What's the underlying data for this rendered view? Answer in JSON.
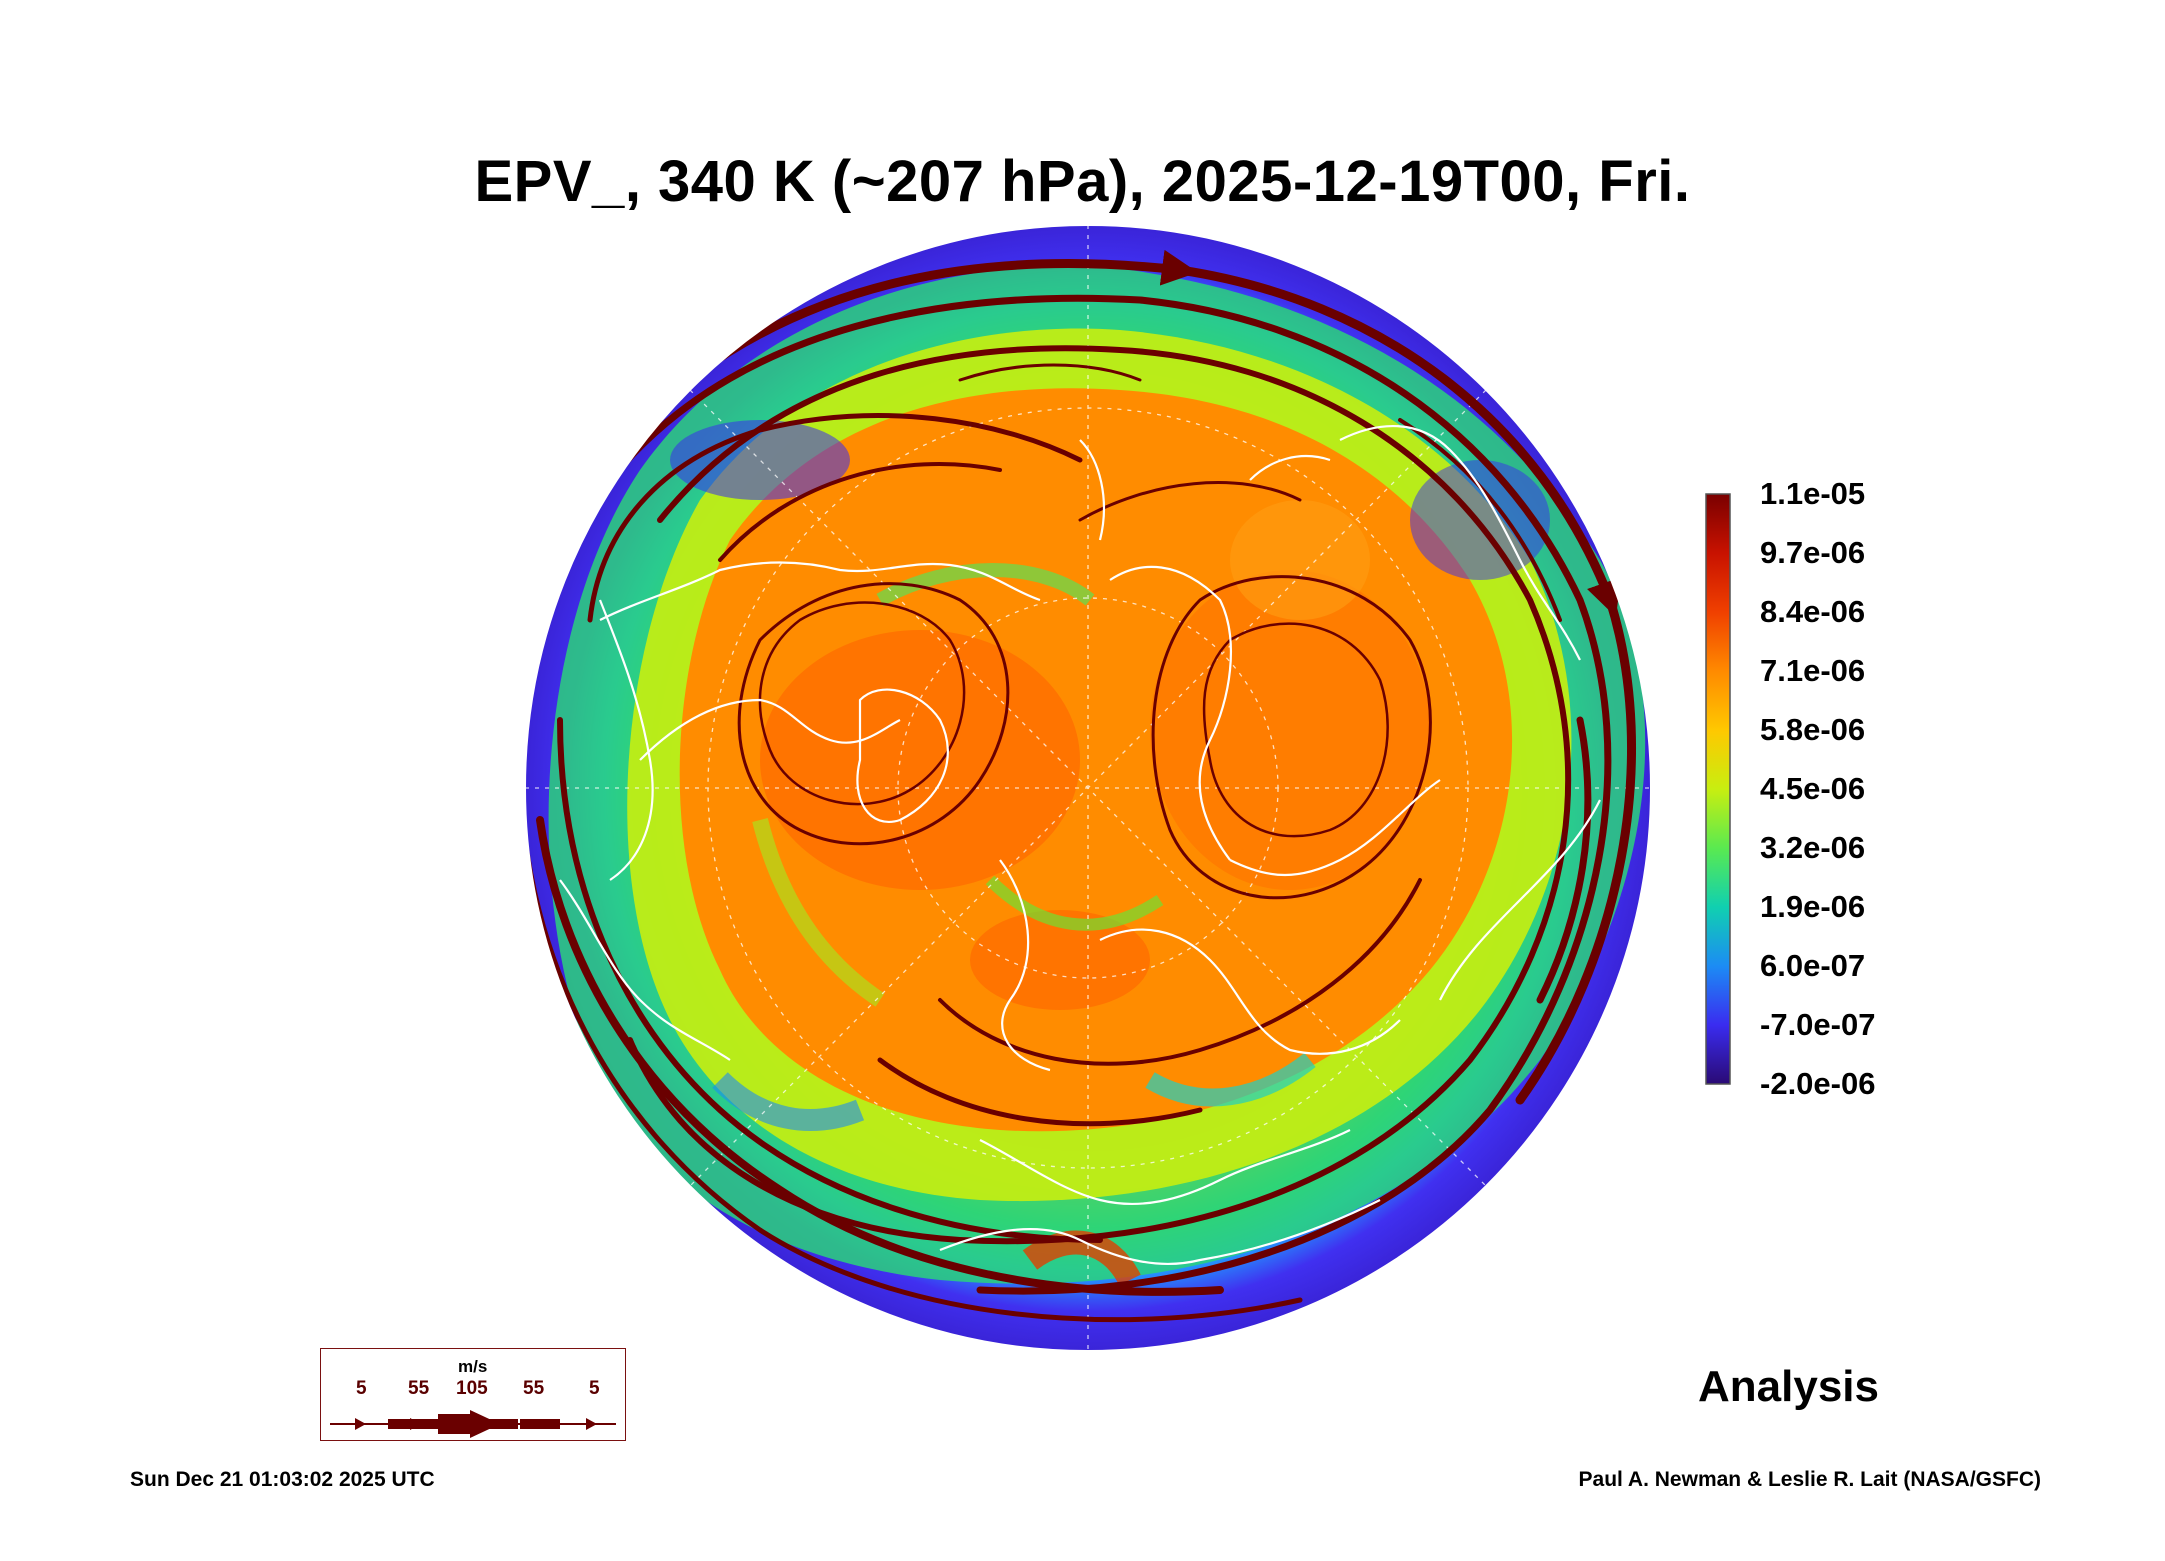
{
  "title": "EPV_, 340 K (~207 hPa), 2025-12-19T00, Fri.",
  "colorbar": {
    "labels": [
      "1.1e-05",
      "9.7e-06",
      "8.4e-06",
      "7.1e-06",
      "5.8e-06",
      "4.5e-06",
      "3.2e-06",
      "1.9e-06",
      "6.0e-07",
      "-7.0e-07",
      "-2.0e-06"
    ],
    "colors": [
      "#7a0000",
      "#c81200",
      "#f04000",
      "#ff8a00",
      "#ffc800",
      "#c8ee10",
      "#5aea50",
      "#10d0b0",
      "#1c8cf4",
      "#3a2cf0",
      "#3a0a74"
    ]
  },
  "wind_legend": {
    "unit": "m/s",
    "values": [
      "5",
      "55",
      "105",
      "55",
      "5"
    ],
    "color": "#6a0000"
  },
  "analysis_label": "Analysis",
  "timestamp": "Sun Dec 21 01:03:02 2025 UTC",
  "credit": "Paul A. Newman & Leslie R. Lait (NASA/GSFC)",
  "colors": {
    "streamline": "#6a0000",
    "coastline": "#ffffff",
    "high_pv": "#ff8a00",
    "low_pv": "#3a2cf0"
  }
}
